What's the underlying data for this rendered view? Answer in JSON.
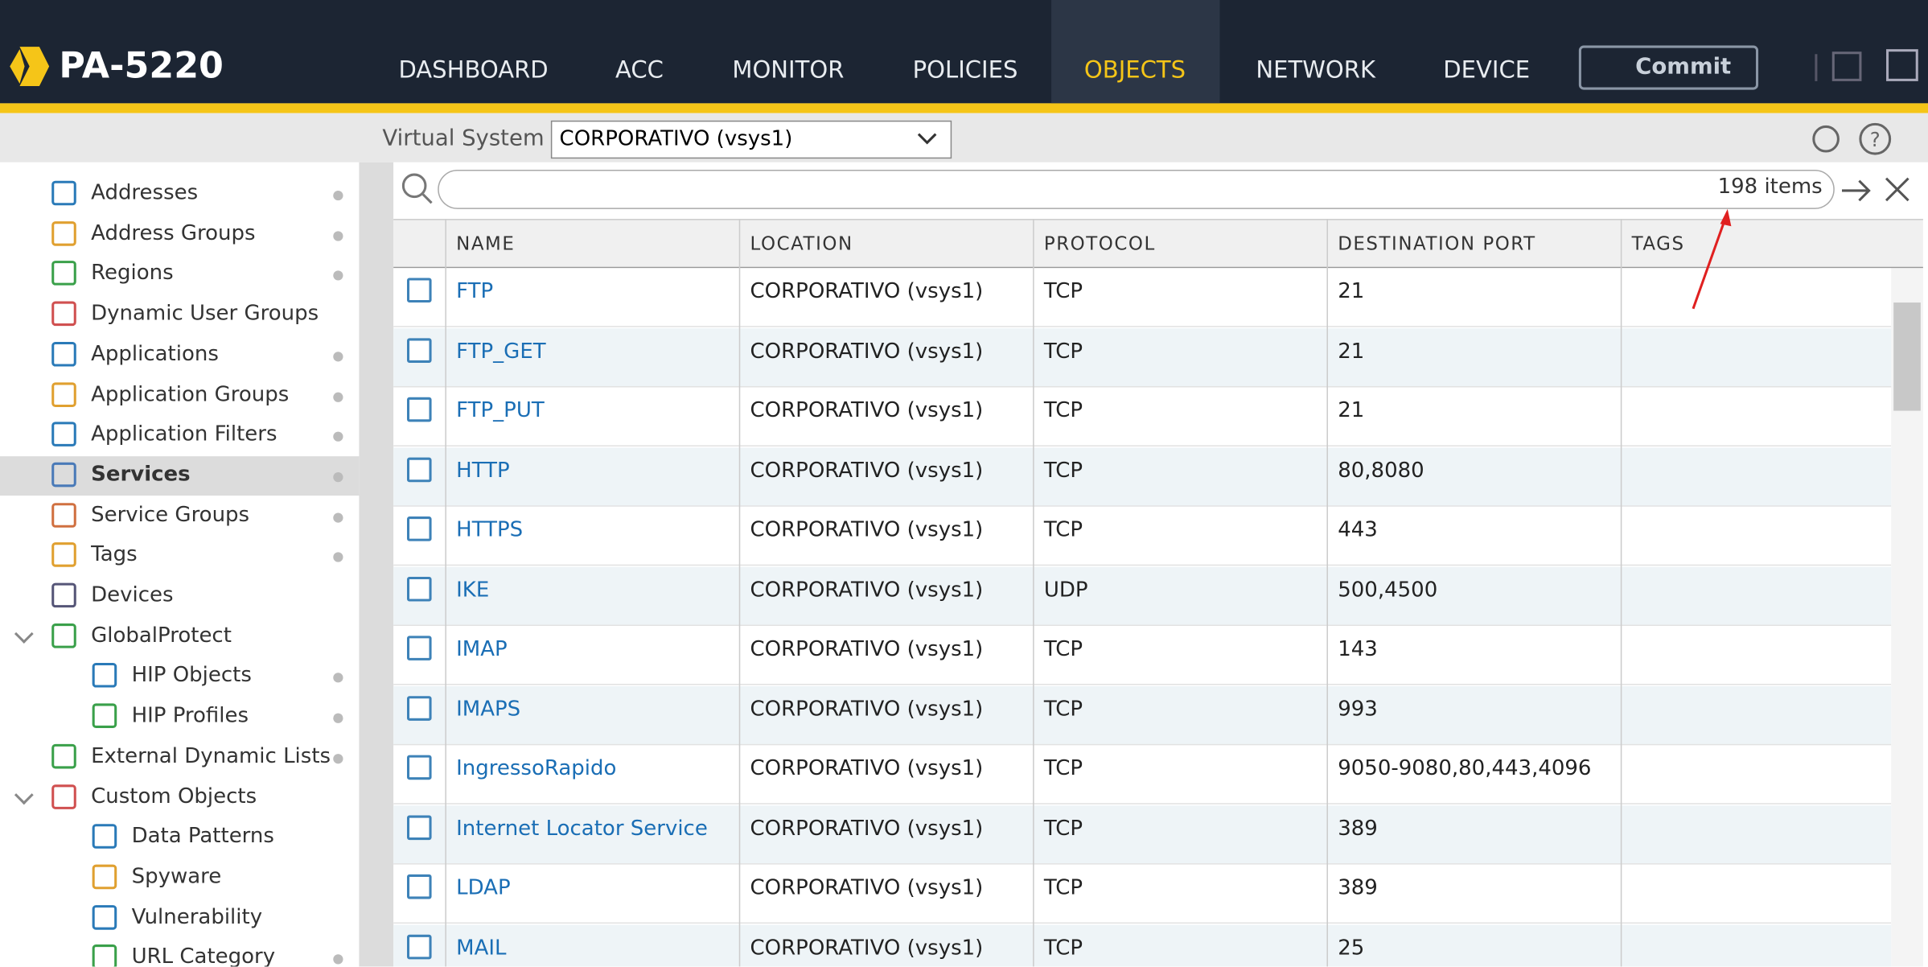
{
  "header": {
    "brand": "PA-5220",
    "nav": [
      "DASHBOARD",
      "ACC",
      "MONITOR",
      "POLICIES",
      "OBJECTS",
      "NETWORK",
      "DEVICE"
    ],
    "commit": "Commit"
  },
  "toolbar": {
    "vsys_label": "Virtual System",
    "vsys_value": "CORPORATIVO (vsys1)"
  },
  "search": {
    "count": "198 items"
  },
  "sidebar": {
    "items": [
      "Addresses",
      "Address Groups",
      "Regions",
      "Dynamic User Groups",
      "Applications",
      "Application Groups",
      "Application Filters",
      "Services",
      "Service Groups",
      "Tags",
      "Devices",
      "GlobalProtect",
      "HIP Objects",
      "HIP Profiles",
      "External Dynamic Lists",
      "Custom Objects",
      "Data Patterns",
      "Spyware",
      "Vulnerability",
      "URL Category"
    ]
  },
  "table": {
    "columns": [
      "NAME",
      "LOCATION",
      "PROTOCOL",
      "DESTINATION PORT",
      "TAGS"
    ],
    "rows": [
      [
        "FTP",
        "CORPORATIVO (vsys1)",
        "TCP",
        "21"
      ],
      [
        "FTP_GET",
        "CORPORATIVO (vsys1)",
        "TCP",
        "21"
      ],
      [
        "FTP_PUT",
        "CORPORATIVO (vsys1)",
        "TCP",
        "21"
      ],
      [
        "HTTP",
        "CORPORATIVO (vsys1)",
        "TCP",
        "80,8080"
      ],
      [
        "HTTPS",
        "CORPORATIVO (vsys1)",
        "TCP",
        "443"
      ],
      [
        "IKE",
        "CORPORATIVO (vsys1)",
        "UDP",
        "500,4500"
      ],
      [
        "IMAP",
        "CORPORATIVO (vsys1)",
        "TCP",
        "143"
      ],
      [
        "IMAPS",
        "CORPORATIVO (vsys1)",
        "TCP",
        "993"
      ],
      [
        "IngressoRapido",
        "CORPORATIVO (vsys1)",
        "TCP",
        "9050-9080,80,443,4096"
      ],
      [
        "Internet Locator Service",
        "CORPORATIVO (vsys1)",
        "TCP",
        "389"
      ],
      [
        "LDAP",
        "CORPORATIVO (vsys1)",
        "TCP",
        "389"
      ],
      [
        "MAIL",
        "CORPORATIVO (vsys1)",
        "TCP",
        "25"
      ]
    ]
  }
}
